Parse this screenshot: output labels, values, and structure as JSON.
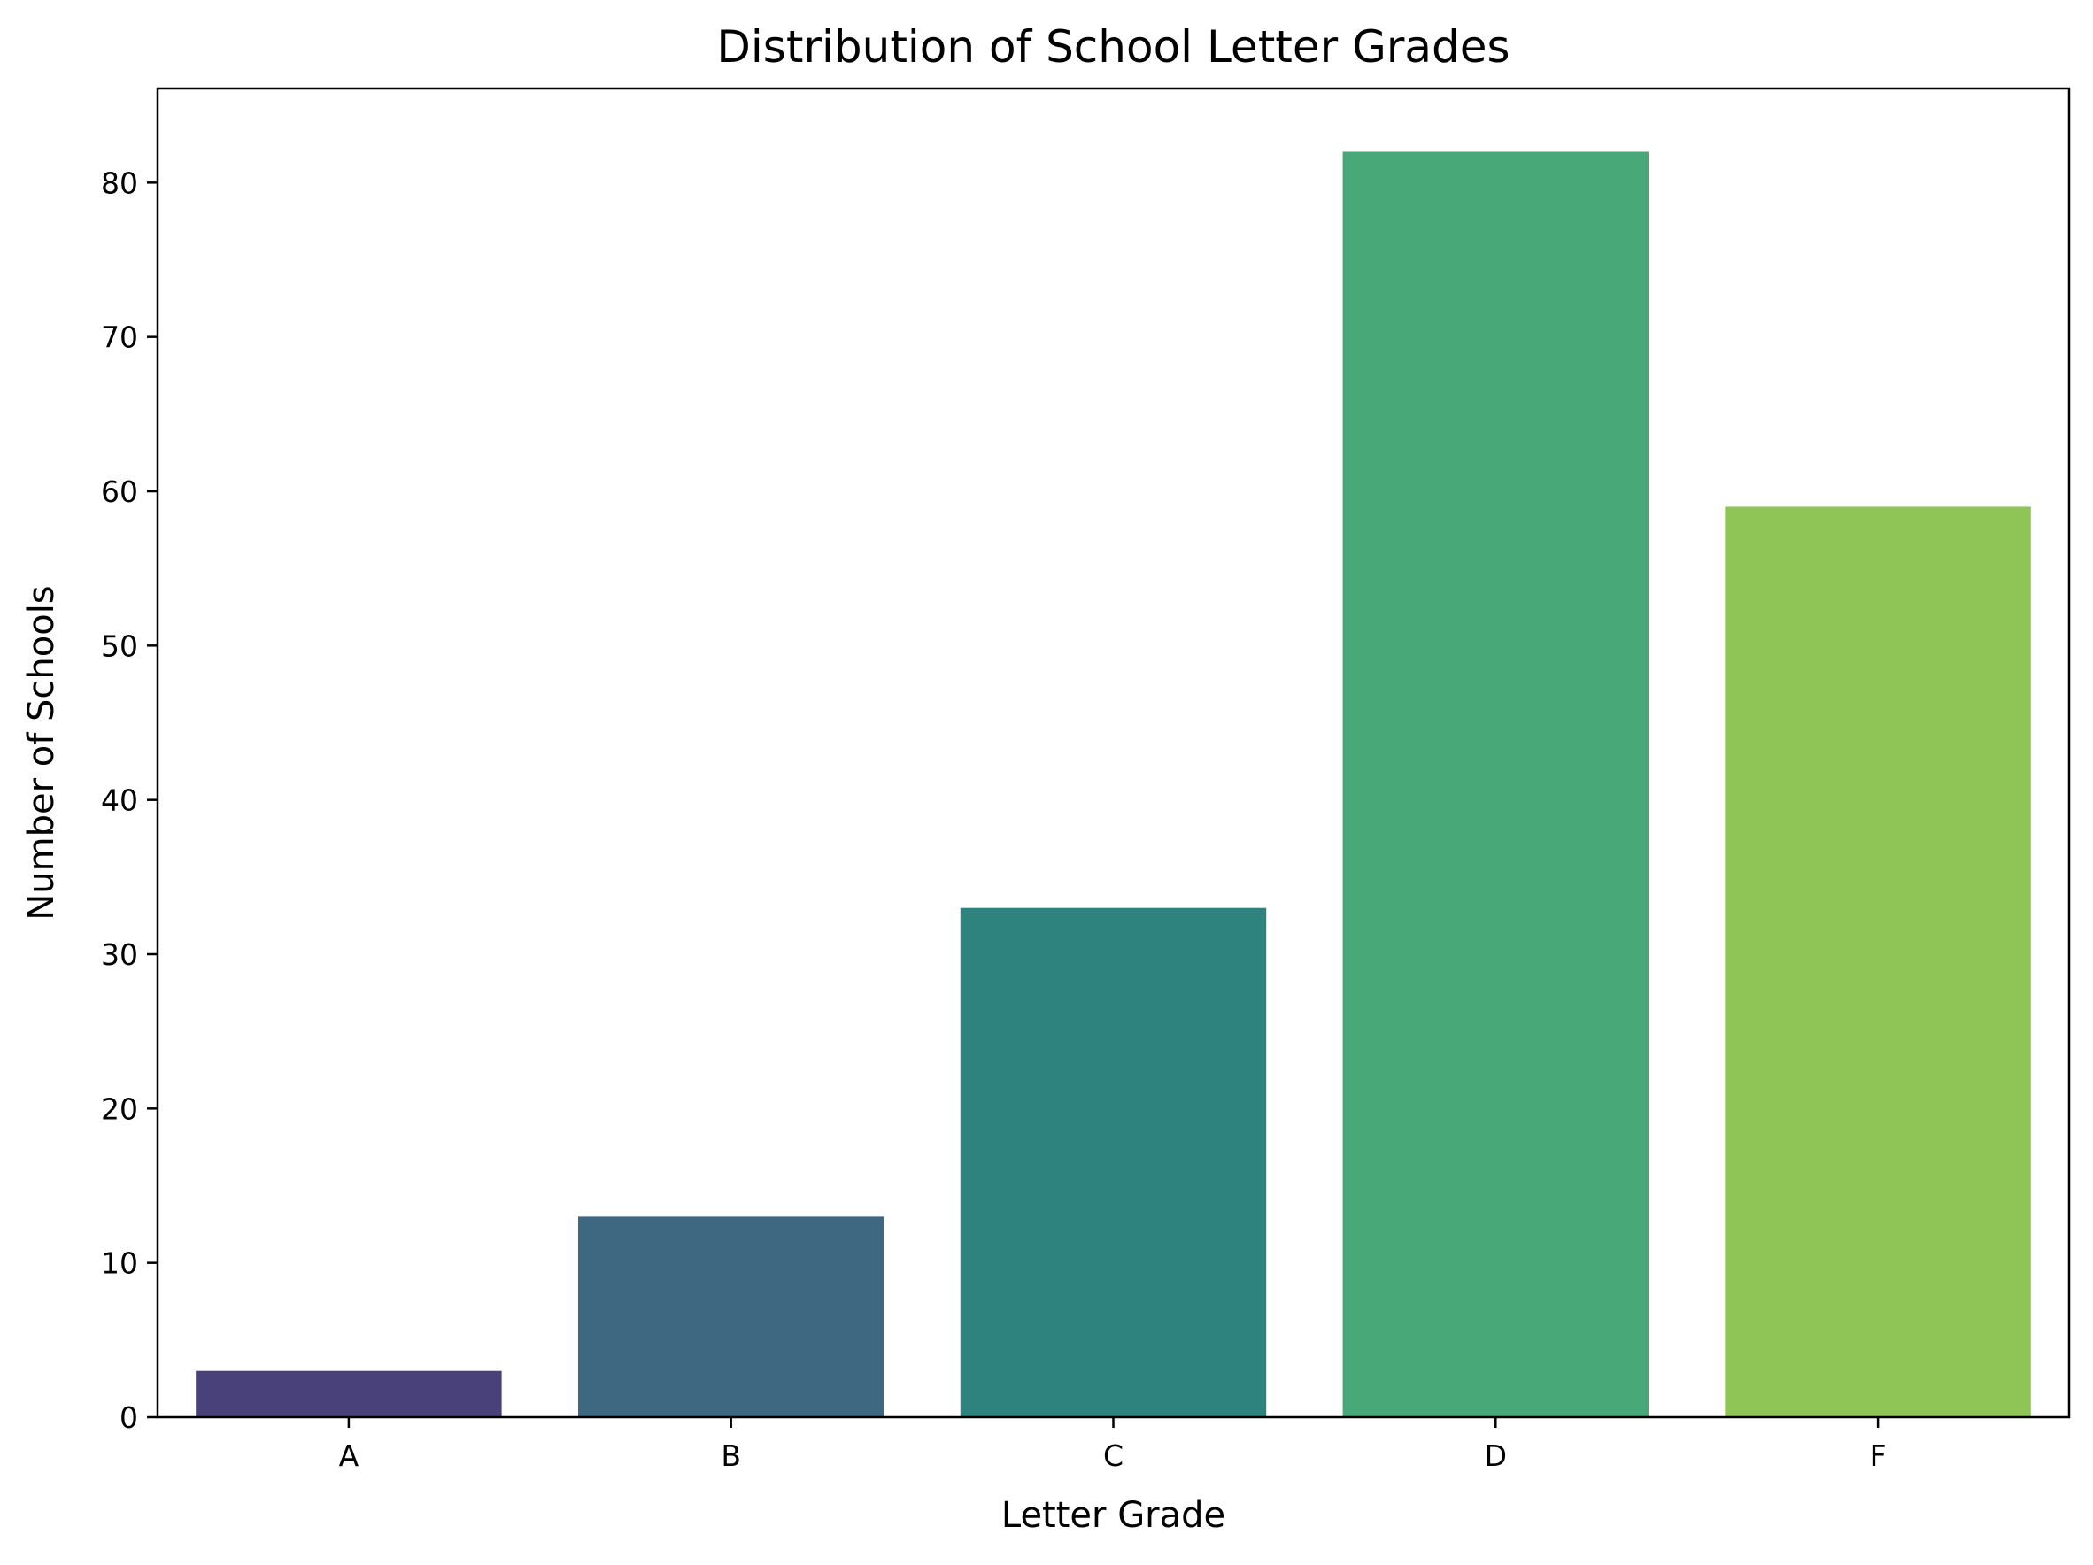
{
  "chart_data": {
    "type": "bar",
    "title": "Distribution of School Letter Grades",
    "xlabel": "Letter Grade",
    "ylabel": "Number of Schools",
    "categories": [
      "A",
      "B",
      "C",
      "D",
      "F"
    ],
    "values": [
      3,
      13,
      33,
      82,
      59
    ],
    "colors": [
      "#48417a",
      "#3e6782",
      "#2f837e",
      "#48a877",
      "#8fc557"
    ],
    "ylim": [
      0,
      86.1
    ],
    "yticks": [
      0,
      10,
      20,
      30,
      40,
      50,
      60,
      70,
      80
    ],
    "grid": false,
    "legend": "none"
  }
}
